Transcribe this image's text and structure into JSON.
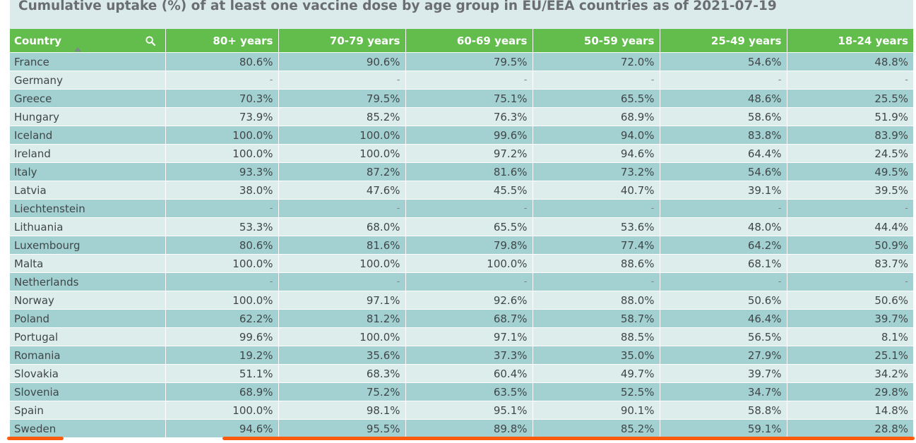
{
  "title": "Cumulative uptake (%) of at least one vaccine dose by age group in EU/EEA countries as of 2021-07-19",
  "colors": {
    "header": "#63bd4c",
    "row_odd": "#a3d1d2",
    "row_even": "#dcedec",
    "highlight": "#ff5b0f"
  },
  "icons": {
    "search": "search-icon",
    "sort": "sort-ascending-icon"
  },
  "chart_data": {
    "type": "table",
    "title": "Cumulative uptake (%) of at least one vaccine dose by age group in EU/EEA countries as of 2021-07-19",
    "columns": [
      "Country",
      "80+ years",
      "70-79 years",
      "60-69 years",
      "50-59 years",
      "25-49 years",
      "18-24 years"
    ],
    "rows": [
      [
        "France",
        "80.6%",
        "90.6%",
        "79.5%",
        "72.0%",
        "54.6%",
        "48.8%"
      ],
      [
        "Germany",
        "-",
        "-",
        "-",
        "-",
        "-",
        "-"
      ],
      [
        "Greece",
        "70.3%",
        "79.5%",
        "75.1%",
        "65.5%",
        "48.6%",
        "25.5%"
      ],
      [
        "Hungary",
        "73.9%",
        "85.2%",
        "76.3%",
        "68.9%",
        "58.6%",
        "51.9%"
      ],
      [
        "Iceland",
        "100.0%",
        "100.0%",
        "99.6%",
        "94.0%",
        "83.8%",
        "83.9%"
      ],
      [
        "Ireland",
        "100.0%",
        "100.0%",
        "97.2%",
        "94.6%",
        "64.4%",
        "24.5%"
      ],
      [
        "Italy",
        "93.3%",
        "87.2%",
        "81.6%",
        "73.2%",
        "54.6%",
        "49.5%"
      ],
      [
        "Latvia",
        "38.0%",
        "47.6%",
        "45.5%",
        "40.7%",
        "39.1%",
        "39.5%"
      ],
      [
        "Liechtenstein",
        "-",
        "-",
        "-",
        "-",
        "-",
        "-"
      ],
      [
        "Lithuania",
        "53.3%",
        "68.0%",
        "65.5%",
        "53.6%",
        "48.0%",
        "44.4%"
      ],
      [
        "Luxembourg",
        "80.6%",
        "81.6%",
        "79.8%",
        "77.4%",
        "64.2%",
        "50.9%"
      ],
      [
        "Malta",
        "100.0%",
        "100.0%",
        "100.0%",
        "88.6%",
        "68.1%",
        "83.7%"
      ],
      [
        "Netherlands",
        "-",
        "-",
        "-",
        "-",
        "-",
        "-"
      ],
      [
        "Norway",
        "100.0%",
        "97.1%",
        "92.6%",
        "88.0%",
        "50.6%",
        "50.6%"
      ],
      [
        "Poland",
        "62.2%",
        "81.2%",
        "68.7%",
        "58.7%",
        "46.4%",
        "39.7%"
      ],
      [
        "Portugal",
        "99.6%",
        "100.0%",
        "97.1%",
        "88.5%",
        "56.5%",
        "8.1%"
      ],
      [
        "Romania",
        "19.2%",
        "35.6%",
        "37.3%",
        "35.0%",
        "27.9%",
        "25.1%"
      ],
      [
        "Slovakia",
        "51.1%",
        "68.3%",
        "60.4%",
        "49.7%",
        "39.7%",
        "34.2%"
      ],
      [
        "Slovenia",
        "68.9%",
        "75.2%",
        "63.5%",
        "52.5%",
        "34.7%",
        "29.8%"
      ],
      [
        "Spain",
        "100.0%",
        "98.1%",
        "95.1%",
        "90.1%",
        "58.8%",
        "14.8%"
      ],
      [
        "Sweden",
        "94.6%",
        "95.5%",
        "89.8%",
        "85.2%",
        "59.1%",
        "28.8%"
      ]
    ]
  }
}
